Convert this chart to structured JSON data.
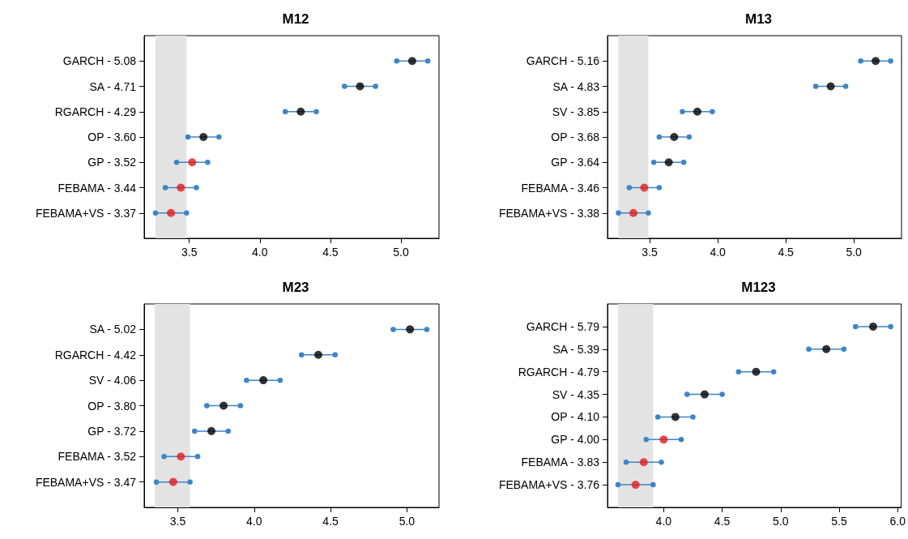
{
  "chart_data": [
    {
      "type": "scatter",
      "orientation": "horizontal",
      "title": "M12",
      "categories": [
        "GARCH - 5.08",
        "SA - 4.71",
        "RGARCH - 4.29",
        "OP - 3.60",
        "GP - 3.52",
        "FEBAMA - 3.44",
        "FEBAMA+VS - 3.37"
      ],
      "values": [
        5.08,
        4.71,
        4.29,
        3.6,
        3.52,
        3.44,
        3.37
      ],
      "colors": [
        "#000000",
        "#000000",
        "#000000",
        "#000000",
        "#e41a1c",
        "#e41a1c",
        "#e41a1c"
      ],
      "errors": [
        0.11,
        0.11,
        0.11,
        0.11,
        0.11,
        0.11,
        0.11
      ],
      "xlim": [
        3.18,
        5.27
      ],
      "xticks": [
        3.5,
        {
          "value": 4,
          "label": "4.0"
        },
        4.5,
        {
          "value": 5,
          "label": "5.0"
        }
      ],
      "bands": [
        {
          "axis": "x",
          "from": 3.26,
          "to": 3.48,
          "color": "#e3e3e3"
        }
      ],
      "marker": "circle"
    },
    {
      "type": "scatter",
      "orientation": "horizontal",
      "title": "M13",
      "categories": [
        "GARCH - 5.16",
        "SA - 4.83",
        "SV - 3.85",
        "OP - 3.68",
        "GP - 3.64",
        "FEBAMA - 3.46",
        "FEBAMA+VS - 3.38"
      ],
      "values": [
        5.16,
        4.83,
        3.85,
        3.68,
        3.64,
        3.46,
        3.38
      ],
      "colors": [
        "#000000",
        "#000000",
        "#000000",
        "#000000",
        "#000000",
        "#e41a1c",
        "#e41a1c"
      ],
      "errors": [
        0.11,
        0.11,
        0.11,
        0.11,
        0.11,
        0.11,
        0.11
      ],
      "xlim": [
        3.19,
        5.35
      ],
      "xticks": [
        3.5,
        {
          "value": 4,
          "label": "4.0"
        },
        4.5,
        {
          "value": 5,
          "label": "5.0"
        }
      ],
      "bands": [
        {
          "axis": "x",
          "from": 3.27,
          "to": 3.49,
          "color": "#e3e3e3"
        }
      ],
      "marker": "circle"
    },
    {
      "type": "scatter",
      "orientation": "horizontal",
      "title": "M23",
      "categories": [
        "SA - 5.02",
        "RGARCH - 4.42",
        "SV - 4.06",
        "OP - 3.80",
        "GP - 3.72",
        "FEBAMA - 3.52",
        "FEBAMA+VS - 3.47"
      ],
      "values": [
        5.02,
        4.42,
        4.06,
        3.8,
        3.72,
        3.52,
        3.47
      ],
      "colors": [
        "#000000",
        "#000000",
        "#000000",
        "#000000",
        "#000000",
        "#e41a1c",
        "#e41a1c"
      ],
      "errors": [
        0.11,
        0.11,
        0.11,
        0.11,
        0.11,
        0.11,
        0.11
      ],
      "xlim": [
        3.28,
        5.21
      ],
      "xticks": [
        3.5,
        {
          "value": 4,
          "label": "4.0"
        },
        4.5,
        {
          "value": 5,
          "label": "5.0"
        }
      ],
      "bands": [
        {
          "axis": "x",
          "from": 3.35,
          "to": 3.58,
          "color": "#e3e3e3"
        }
      ],
      "marker": "circle"
    },
    {
      "type": "scatter",
      "orientation": "horizontal",
      "title": "M123",
      "categories": [
        "GARCH - 5.79",
        "SA - 5.39",
        "RGARCH - 4.79",
        "SV - 4.35",
        "OP - 4.10",
        "GP - 4.00",
        "FEBAMA - 3.83",
        "FEBAMA+VS - 3.76"
      ],
      "values": [
        5.79,
        5.39,
        4.79,
        4.35,
        4.1,
        4.0,
        3.83,
        3.76
      ],
      "colors": [
        "#000000",
        "#000000",
        "#000000",
        "#000000",
        "#000000",
        "#e41a1c",
        "#e41a1c",
        "#e41a1c"
      ],
      "errors": [
        0.15,
        0.15,
        0.15,
        0.15,
        0.15,
        0.15,
        0.15,
        0.15
      ],
      "xlim": [
        3.52,
        6.03
      ],
      "xticks": [
        {
          "value": 4,
          "label": "4.0"
        },
        4.5,
        {
          "value": 5,
          "label": "5.0"
        },
        5.5,
        {
          "value": 6,
          "label": "6.0"
        }
      ],
      "bands": [
        {
          "axis": "x",
          "from": 3.61,
          "to": 3.91,
          "color": "#e3e3e3"
        }
      ],
      "marker": "circle"
    }
  ]
}
